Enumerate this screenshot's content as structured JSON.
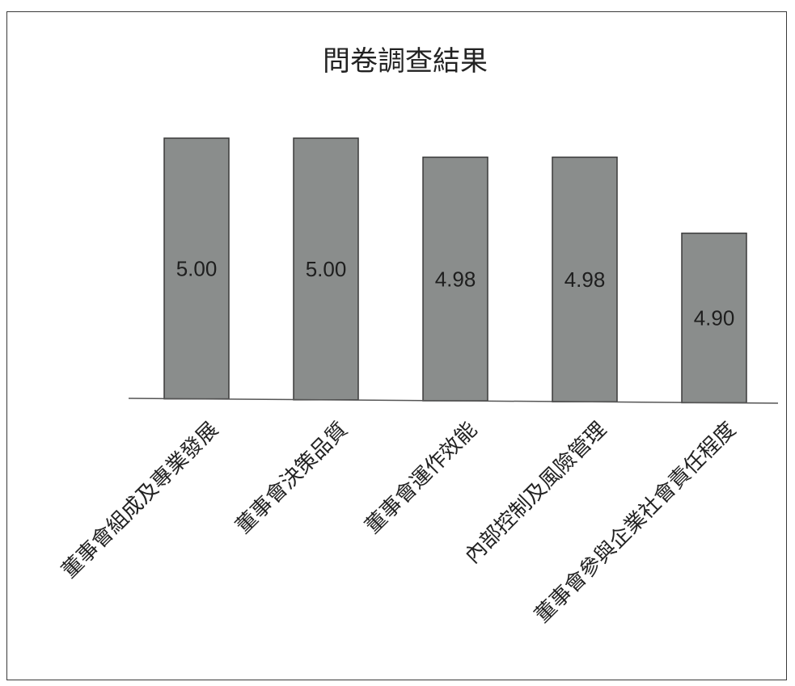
{
  "chart_data": {
    "type": "bar",
    "title": "問卷調查結果",
    "categories": [
      "董事會組成及專業發展",
      "董事會決策品質",
      "董事會運作效能",
      "內部控制及風險管理",
      "董事會參與企業社會責任程度"
    ],
    "values": [
      5.0,
      5.0,
      4.98,
      4.98,
      4.9
    ],
    "data_labels": [
      "5.00",
      "5.00",
      "4.98",
      "4.98",
      "4.90"
    ],
    "xlabel": "",
    "ylabel": "",
    "ylim": [
      4.83,
      5.0
    ],
    "grid": false,
    "legend": "none",
    "colors": {
      "bar": "#8a8d8c",
      "bar_edge": "#3a3a3a",
      "axis": "#555555"
    }
  }
}
